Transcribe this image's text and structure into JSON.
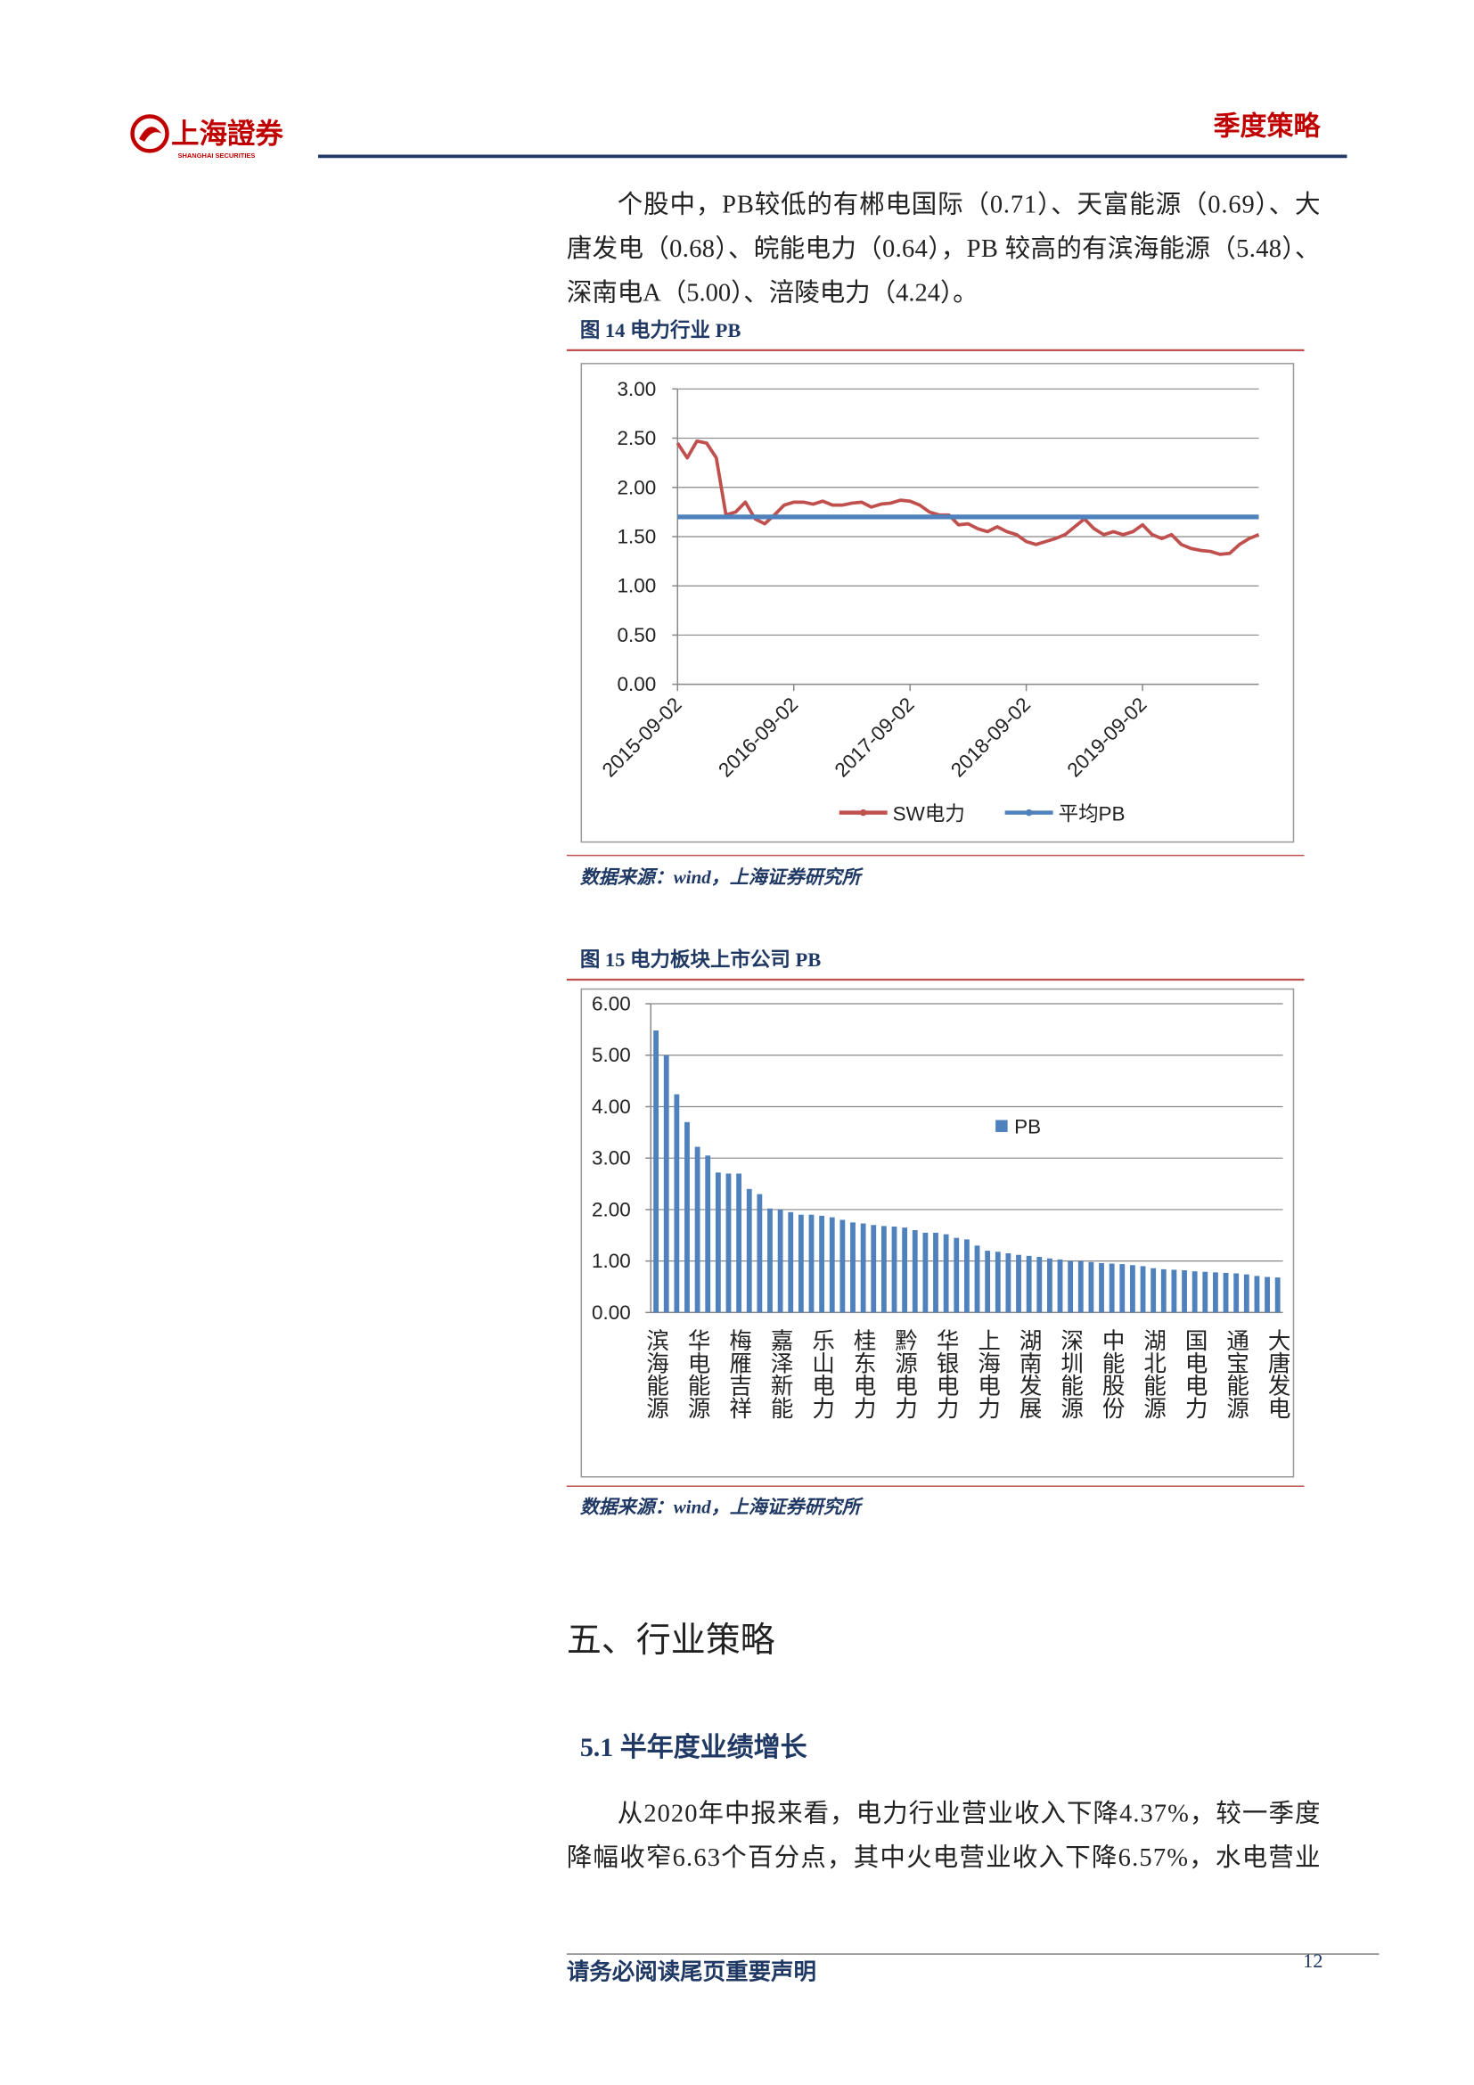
{
  "header": {
    "logo_text": "上海證券",
    "logo_subtext": "SHANGHAI SECURITIES",
    "section": "季度策略"
  },
  "paragraphs": [
    [
      "个股中，PB较低的有郴电国际（0.71）、天富能源（0.69）、大",
      "唐发电（0.68）、皖能电力（0.64），PB 较高的有滨海能源（5.48）、",
      "深南电A（5.00）、涪陵电力（4.24）。"
    ],
    [
      "从2020年中报来看，电力行业营业收入下降4.37%，较一季度",
      "降幅收窄6.63个百分点，其中火电营业收入下降6.57%，水电营业"
    ]
  ],
  "figures": [
    {
      "caption": "图 14 电力行业 PB",
      "source": "数据来源：wind，上海证券研究所"
    },
    {
      "caption": "图 15 电力板块上市公司 PB",
      "source": "数据来源：wind，上海证券研究所"
    }
  ],
  "chart_data": [
    {
      "type": "line",
      "categories": [
        "2015-09-02",
        null,
        null,
        null,
        null,
        null,
        null,
        null,
        null,
        null,
        null,
        null,
        "2016-09-02",
        null,
        null,
        null,
        null,
        null,
        null,
        null,
        null,
        null,
        null,
        null,
        "2017-09-02",
        null,
        null,
        null,
        null,
        null,
        null,
        null,
        null,
        null,
        null,
        null,
        "2018-09-02",
        null,
        null,
        null,
        null,
        null,
        null,
        null,
        null,
        null,
        null,
        null,
        "2019-09-02",
        null,
        null,
        null,
        null,
        null,
        null,
        null,
        null,
        null,
        null,
        null,
        null
      ],
      "series": [
        {
          "name": "SW电力",
          "color": "#c0504d",
          "values": [
            2.45,
            2.3,
            2.47,
            2.45,
            2.3,
            1.72,
            1.75,
            1.85,
            1.68,
            1.63,
            1.72,
            1.82,
            1.85,
            1.85,
            1.83,
            1.86,
            1.82,
            1.82,
            1.84,
            1.85,
            1.8,
            1.83,
            1.84,
            1.87,
            1.86,
            1.82,
            1.75,
            1.72,
            1.72,
            1.62,
            1.63,
            1.58,
            1.55,
            1.6,
            1.55,
            1.52,
            1.45,
            1.42,
            1.45,
            1.48,
            1.52,
            1.6,
            1.68,
            1.58,
            1.52,
            1.55,
            1.52,
            1.55,
            1.62,
            1.52,
            1.48,
            1.52,
            1.42,
            1.38,
            1.36,
            1.35,
            1.32,
            1.33,
            1.42,
            1.48,
            1.52
          ]
        },
        {
          "name": "平均PB",
          "color": "#4f81bd",
          "values": [
            1.7,
            1.7,
            1.7,
            1.7,
            1.7,
            1.7,
            1.7,
            1.7,
            1.7,
            1.7,
            1.7,
            1.7,
            1.7,
            1.7,
            1.7,
            1.7,
            1.7,
            1.7,
            1.7,
            1.7,
            1.7,
            1.7,
            1.7,
            1.7,
            1.7,
            1.7,
            1.7,
            1.7,
            1.7,
            1.7,
            1.7,
            1.7,
            1.7,
            1.7,
            1.7,
            1.7,
            1.7,
            1.7,
            1.7,
            1.7,
            1.7,
            1.7,
            1.7,
            1.7,
            1.7,
            1.7,
            1.7,
            1.7,
            1.7,
            1.7,
            1.7,
            1.7,
            1.7,
            1.7,
            1.7,
            1.7,
            1.7,
            1.7,
            1.7,
            1.7,
            1.7
          ]
        }
      ],
      "ylim": [
        0,
        3
      ],
      "yticks": [
        {
          "value": 0,
          "label": "0.00"
        },
        {
          "value": 0.5,
          "label": "0.50"
        },
        {
          "value": 1,
          "label": "1.00"
        },
        {
          "value": 1.5,
          "label": "1.50"
        },
        {
          "value": 2,
          "label": "2.00"
        },
        {
          "value": 2.5,
          "label": "2.50"
        },
        {
          "value": 3,
          "label": "3.00"
        }
      ],
      "grid": true,
      "legend": "bottom"
    },
    {
      "type": "bar",
      "categories": [
        "滨海能源",
        null,
        null,
        null,
        "华电能源",
        null,
        null,
        null,
        "梅雁吉祥",
        null,
        null,
        null,
        "嘉泽新能",
        null,
        null,
        null,
        "乐山电力",
        null,
        null,
        null,
        "桂东电力",
        null,
        null,
        null,
        "黔源电力",
        null,
        null,
        null,
        "华银电力",
        null,
        null,
        null,
        "上海电力",
        null,
        null,
        null,
        "湖南发展",
        null,
        null,
        null,
        "深圳能源",
        null,
        null,
        null,
        "中能股份",
        null,
        null,
        null,
        "湖北能源",
        null,
        null,
        null,
        "国电电力",
        null,
        null,
        null,
        "通宝能源",
        null,
        null,
        null,
        "大唐发电"
      ],
      "series": [
        {
          "name": "PB",
          "color": "#4f81bd",
          "values": [
            5.48,
            5.0,
            4.24,
            3.7,
            3.22,
            3.05,
            2.72,
            2.7,
            2.7,
            2.4,
            2.3,
            2.02,
            2.0,
            1.95,
            1.9,
            1.9,
            1.88,
            1.85,
            1.8,
            1.75,
            1.73,
            1.7,
            1.68,
            1.67,
            1.65,
            1.6,
            1.55,
            1.55,
            1.52,
            1.45,
            1.42,
            1.3,
            1.2,
            1.18,
            1.15,
            1.12,
            1.1,
            1.08,
            1.05,
            1.03,
            1.0,
            1.0,
            0.98,
            0.96,
            0.95,
            0.94,
            0.92,
            0.9,
            0.86,
            0.84,
            0.83,
            0.82,
            0.8,
            0.79,
            0.78,
            0.77,
            0.76,
            0.74,
            0.71,
            0.69,
            0.68
          ]
        }
      ],
      "ylim": [
        0,
        6
      ],
      "yticks": [
        {
          "value": 0,
          "label": "0.00"
        },
        {
          "value": 1,
          "label": "1.00"
        },
        {
          "value": 2,
          "label": "2.00"
        },
        {
          "value": 3,
          "label": "3.00"
        },
        {
          "value": 4,
          "label": "4.00"
        },
        {
          "value": 5,
          "label": "5.00"
        },
        {
          "value": 6,
          "label": "6.00"
        }
      ],
      "grid": true,
      "legend": "right"
    }
  ],
  "section_title": "五、行业策略",
  "subsection_title": "5.1 半年度业绩增长",
  "footer": {
    "notice": "请务必阅读尾页重要声明",
    "page": "12"
  }
}
